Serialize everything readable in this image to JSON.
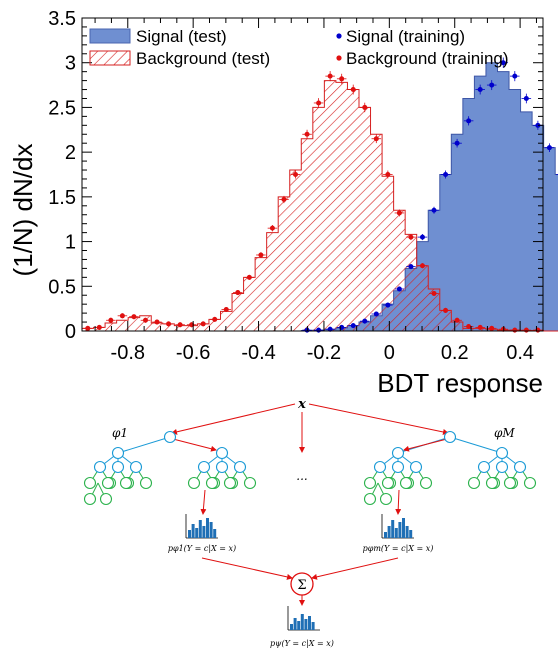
{
  "chart_data": {
    "type": "bar",
    "xlabel": "BDT response",
    "ylabel": "(1/N) dN/dx",
    "xlim": [
      -0.94,
      0.47
    ],
    "ylim": [
      0,
      3.5
    ],
    "xticks": [
      "-0.8",
      "-0.6",
      "-0.4",
      "-0.2",
      "0",
      "0.2",
      "0.4"
    ],
    "xtick_values": [
      -0.8,
      -0.6,
      -0.4,
      -0.2,
      0,
      0.2,
      0.4
    ],
    "yticks": [
      "0",
      "0.5",
      "1",
      "1.5",
      "2",
      "2.5",
      "3",
      "3.5"
    ],
    "ytick_values": [
      0,
      0.5,
      1,
      1.5,
      2,
      2.5,
      3,
      3.5
    ],
    "legend": [
      {
        "label": "Signal (test)",
        "style": "filled-box",
        "color": "#6f8fd1"
      },
      {
        "label": "Signal (training)",
        "style": "marker",
        "color": "#0000cc"
      },
      {
        "label": "Background (test)",
        "style": "hatched-box",
        "color": "#d62020"
      },
      {
        "label": "Background (training)",
        "style": "marker",
        "color": "#e01010"
      }
    ],
    "bin_edges_start": -0.94,
    "bin_width": 0.0353,
    "series": [
      {
        "name": "Signal (test)",
        "style": "filled-step",
        "values": [
          0,
          0,
          0,
          0,
          0,
          0,
          0,
          0,
          0,
          0,
          0,
          0,
          0,
          0,
          0,
          0,
          0,
          0,
          0,
          0.005,
          0.01,
          0.02,
          0.035,
          0.06,
          0.1,
          0.17,
          0.3,
          0.45,
          0.7,
          1.0,
          1.35,
          1.75,
          2.2,
          2.6,
          2.85,
          3.0,
          2.9,
          2.7,
          2.45,
          2.3,
          2.05,
          1.75,
          1.5,
          1.2,
          0.95,
          0.72,
          0.55,
          0.38,
          0.18,
          0.12
        ]
      },
      {
        "name": "Signal (training)",
        "style": "marker",
        "values": [
          0,
          0,
          0,
          0,
          0,
          0,
          0,
          0,
          0,
          0,
          0,
          0,
          0,
          0,
          0,
          0,
          0,
          0,
          0,
          0.01,
          0.01,
          0.02,
          0.04,
          0.06,
          0.11,
          0.19,
          0.29,
          0.47,
          0.72,
          1.05,
          1.35,
          1.75,
          2.1,
          2.35,
          2.7,
          2.75,
          3.0,
          2.85,
          2.6,
          2.3,
          2.05,
          1.75,
          1.5,
          1.15,
          0.93,
          0.73,
          0.52,
          0.33,
          0.18,
          0.1
        ]
      },
      {
        "name": "Background (test)",
        "style": "hatched-step",
        "values": [
          0.03,
          0.04,
          0.09,
          0.12,
          0.15,
          0.17,
          0.09,
          0.08,
          0.06,
          0.06,
          0.08,
          0.13,
          0.22,
          0.42,
          0.6,
          0.82,
          1.1,
          1.5,
          1.8,
          2.15,
          2.5,
          2.8,
          2.78,
          2.7,
          2.5,
          2.2,
          1.73,
          1.35,
          1.08,
          0.73,
          0.47,
          0.23,
          0.1,
          0.03,
          0.03,
          0.02,
          0.01,
          0.01,
          0.005,
          0.005,
          0,
          0,
          0,
          0,
          0,
          0,
          0,
          0,
          0,
          0
        ]
      },
      {
        "name": "Background (training)",
        "style": "marker",
        "values": [
          0.03,
          0.04,
          0.12,
          0.17,
          0.16,
          0.12,
          0.1,
          0.08,
          0.07,
          0.07,
          0.08,
          0.13,
          0.24,
          0.43,
          0.6,
          0.85,
          1.15,
          1.47,
          1.75,
          2.2,
          2.55,
          2.85,
          2.82,
          2.7,
          2.5,
          2.15,
          1.75,
          1.32,
          1.05,
          0.73,
          0.42,
          0.23,
          0.12,
          0.05,
          0.04,
          0.03,
          0.02,
          0.01,
          0.01,
          0.01,
          0,
          0,
          0,
          0,
          0,
          0,
          0,
          0,
          0,
          0
        ]
      }
    ]
  },
  "diagram": {
    "root_label": "x",
    "tree_first_label": "φ1",
    "tree_last_label": "φM",
    "ellipsis": "...",
    "prob_first": "pφ1(Y = c|X = x)",
    "prob_last": "pφm(Y = c|X = x)",
    "sum_symbol": "Σ",
    "prob_final": "pψ(Y = c|X = x)",
    "colors": {
      "arrow": "#e01010",
      "tree_top": "#1a9ad6",
      "tree_leaf": "#2bb24c",
      "histogram": "#1f6fb5"
    }
  }
}
